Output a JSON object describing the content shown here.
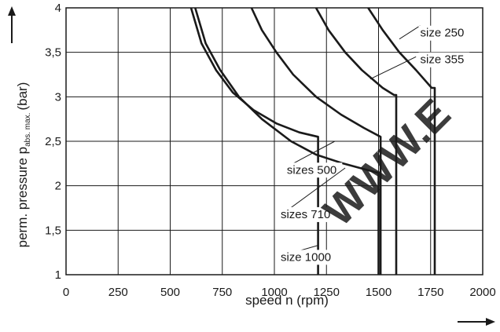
{
  "chart_data": {
    "type": "line",
    "xlabel": "speed n (rpm)",
    "ylabel_main": "perm. pressure p",
    "ylabel_sub": "abs. max.",
    "ylabel_unit": "(bar)",
    "xlim": [
      0,
      2000
    ],
    "ylim": [
      1,
      4
    ],
    "x_ticks": [
      "0",
      "250",
      "500",
      "750",
      "1000",
      "1250",
      "1500",
      "1750",
      "2000"
    ],
    "y_ticks": [
      "1",
      "1,5",
      "2",
      "2,5",
      "3",
      "3,5",
      "4"
    ],
    "grid": true,
    "watermark": "WWW.E",
    "series": [
      {
        "name": "size 250",
        "points": [
          [
            1450,
            4
          ],
          [
            1520,
            3.75
          ],
          [
            1600,
            3.5
          ],
          [
            1680,
            3.3
          ],
          [
            1755,
            3.1
          ],
          [
            1770,
            3.1
          ],
          [
            1770,
            1
          ]
        ]
      },
      {
        "name": "size 355",
        "points": [
          [
            1200,
            4
          ],
          [
            1260,
            3.75
          ],
          [
            1340,
            3.5
          ],
          [
            1420,
            3.3
          ],
          [
            1520,
            3.1
          ],
          [
            1575,
            3.02
          ],
          [
            1585,
            3.02
          ],
          [
            1585,
            1
          ]
        ]
      },
      {
        "name": "sizes 500",
        "points": [
          [
            890,
            4
          ],
          [
            940,
            3.75
          ],
          [
            1010,
            3.5
          ],
          [
            1090,
            3.25
          ],
          [
            1200,
            3.0
          ],
          [
            1320,
            2.8
          ],
          [
            1430,
            2.65
          ],
          [
            1510,
            2.55
          ],
          [
            1510,
            1
          ]
        ]
      },
      {
        "name": "sizes 710",
        "points": [
          [
            620,
            4
          ],
          [
            670,
            3.6
          ],
          [
            740,
            3.3
          ],
          [
            830,
            3.0
          ],
          [
            940,
            2.75
          ],
          [
            1080,
            2.5
          ],
          [
            1200,
            2.35
          ],
          [
            1330,
            2.25
          ],
          [
            1490,
            2.15
          ],
          [
            1500,
            2.15
          ],
          [
            1500,
            1
          ]
        ]
      },
      {
        "name": "size 1000",
        "points": [
          [
            600,
            4
          ],
          [
            650,
            3.6
          ],
          [
            720,
            3.3
          ],
          [
            800,
            3.05
          ],
          [
            900,
            2.85
          ],
          [
            1010,
            2.7
          ],
          [
            1120,
            2.6
          ],
          [
            1210,
            2.55
          ],
          [
            1210,
            1
          ]
        ]
      }
    ],
    "callouts": [
      {
        "text": "size 250",
        "line_from": [
          1600,
          3.65
        ],
        "line_to": [
          1700,
          3.8
        ],
        "text_at": [
          1700,
          3.72
        ]
      },
      {
        "text": "size 355",
        "line_from": [
          1460,
          3.2
        ],
        "line_to": [
          1680,
          3.45
        ],
        "text_at": [
          1700,
          3.42
        ]
      },
      {
        "text": "sizes 500",
        "line_from": [
          1090,
          2.25
        ],
        "line_to": [
          1290,
          2.5
        ],
        "text_at": [
          1060,
          2.18
        ]
      },
      {
        "text": "sizes 710",
        "line_from": [
          1060,
          1.72
        ],
        "line_to": [
          1340,
          2.2
        ],
        "text_at": [
          1030,
          1.68
        ]
      },
      {
        "text": "size 1000",
        "line_from": [
          1060,
          1.23
        ],
        "line_to": [
          1210,
          1.33
        ],
        "text_at": [
          1030,
          1.2
        ]
      }
    ]
  }
}
